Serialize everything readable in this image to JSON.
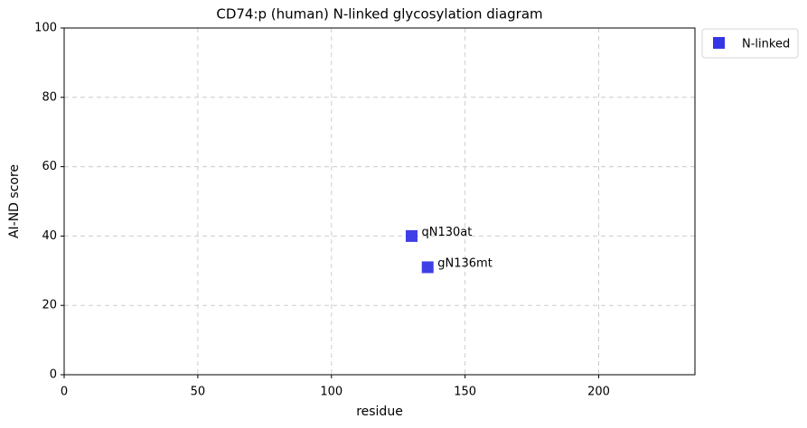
{
  "chart_data": {
    "type": "scatter",
    "title": "CD74:p (human) N-linked glycosylation diagram",
    "x_label": "residue",
    "y_label": "AI-ND score",
    "xlim": [
      0,
      236
    ],
    "ylim": [
      0,
      100
    ],
    "xticks": [
      0,
      50,
      100,
      150,
      200
    ],
    "yticks": [
      0,
      20,
      40,
      60,
      80,
      100
    ],
    "grid": true,
    "legend": "outside-upper-right",
    "series": [
      {
        "name": "N-linked",
        "color": "#3535e6",
        "x": [
          130,
          136
        ],
        "values": [
          40,
          31
        ],
        "point_labels": [
          "qN130at",
          "gN136mt"
        ]
      }
    ]
  }
}
